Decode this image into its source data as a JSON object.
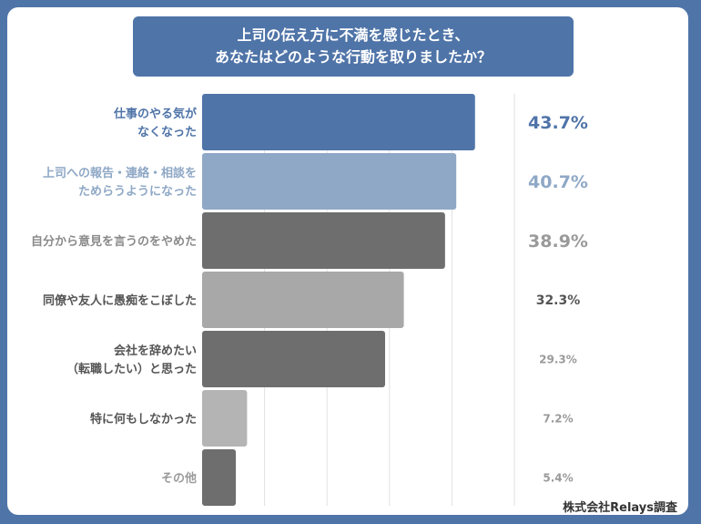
{
  "title": {
    "line1": "上司の伝え方に不満を感じたとき、",
    "line2": "あなたはどのような行動を取りましたか？"
  },
  "credit": "株式会社Relays調査",
  "chart_data": {
    "type": "bar",
    "orientation": "horizontal",
    "title": "上司の伝え方に不満を感じたとき、あなたはどのような行動を取りましたか？",
    "categories": [
      [
        "仕事のやる気が",
        "なくなった"
      ],
      [
        "上司への報告・連絡・相談を",
        "ためらうようになった"
      ],
      [
        "自分から意見を言うのをやめた"
      ],
      [
        "同僚や友人に愚痴をこぼした"
      ],
      [
        "会社を辞めたい",
        "（転職したい）と思った"
      ],
      [
        "特に何もしなかった"
      ],
      [
        "その他"
      ]
    ],
    "values": [
      43.7,
      40.7,
      38.9,
      32.3,
      29.3,
      7.2,
      5.4
    ],
    "value_labels": [
      "43.7%",
      "40.7%",
      "38.9%",
      "32.3%",
      "29.3%",
      "7.2%",
      "5.4%"
    ],
    "xlim": [
      0,
      50
    ],
    "grid": true,
    "colors": {
      "bars": [
        "#4f74a8",
        "#8fa8c6",
        "#6e6e6e",
        "#a8a8a8",
        "#6e6e6e",
        "#b4b4b4",
        "#6e6e6e"
      ],
      "category_labels": [
        "#4f74a8",
        "#8fa8c6",
        "#8a8a8a",
        "#555555",
        "#555555",
        "#555555",
        "#9a9a9a"
      ],
      "value_labels": [
        "#4f74a8",
        "#8fa8c6",
        "#9a9a9a",
        "#555555",
        "#9a9a9a",
        "#9a9a9a",
        "#9a9a9a"
      ]
    }
  }
}
